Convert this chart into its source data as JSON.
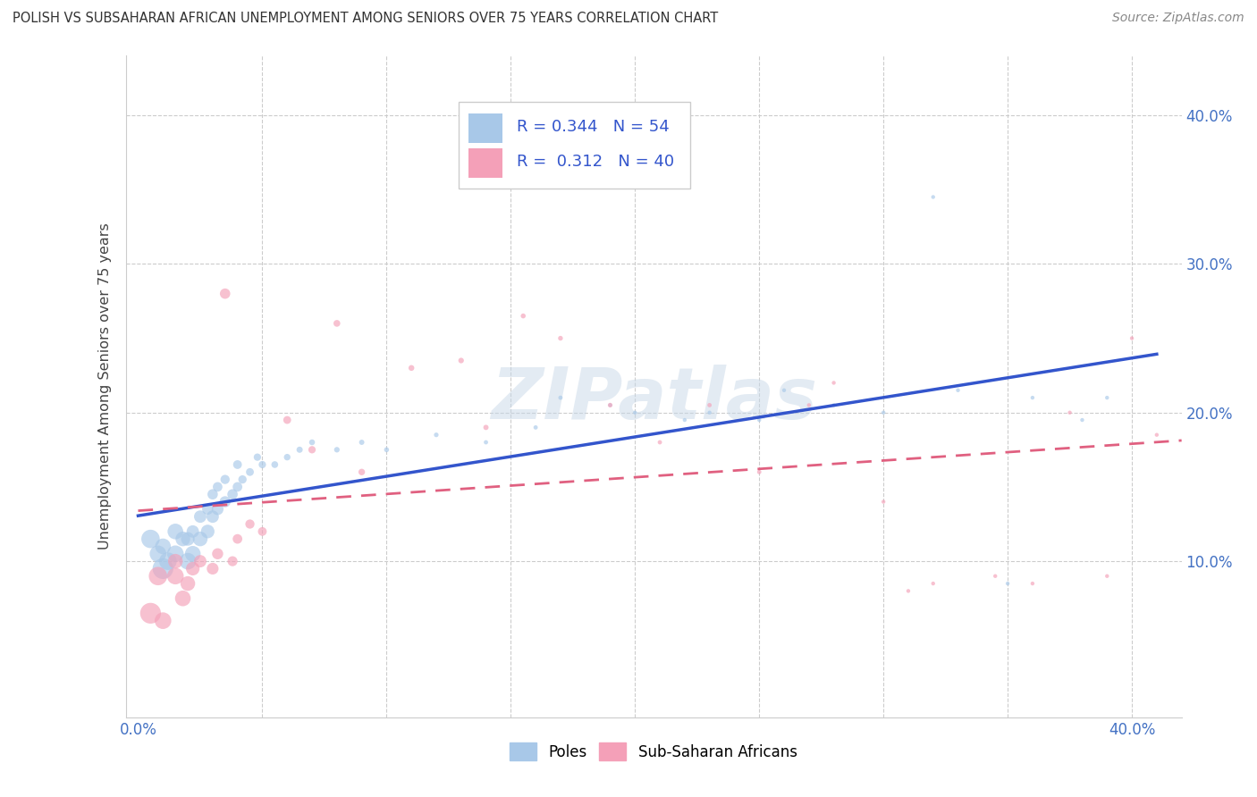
{
  "title": "POLISH VS SUBSAHARAN AFRICAN UNEMPLOYMENT AMONG SENIORS OVER 75 YEARS CORRELATION CHART",
  "source": "Source: ZipAtlas.com",
  "ylabel": "Unemployment Among Seniors over 75 years",
  "xlim": [
    -0.005,
    0.42
  ],
  "ylim": [
    -0.005,
    0.44
  ],
  "poles_color": "#a8c8e8",
  "african_color": "#f4a0b8",
  "poles_line_color": "#3355cc",
  "african_line_color": "#e06080",
  "african_line_dash": [
    6,
    4
  ],
  "R_poles": 0.344,
  "N_poles": 54,
  "R_african": 0.312,
  "N_african": 40,
  "background_color": "#ffffff",
  "grid_color": "#cccccc",
  "watermark": "ZIPatlas",
  "poles_x": [
    0.005,
    0.008,
    0.01,
    0.01,
    0.012,
    0.015,
    0.015,
    0.018,
    0.02,
    0.02,
    0.022,
    0.022,
    0.025,
    0.025,
    0.028,
    0.028,
    0.03,
    0.03,
    0.032,
    0.032,
    0.035,
    0.035,
    0.038,
    0.04,
    0.04,
    0.042,
    0.045,
    0.048,
    0.05,
    0.055,
    0.06,
    0.065,
    0.07,
    0.08,
    0.09,
    0.1,
    0.12,
    0.14,
    0.16,
    0.17,
    0.19,
    0.2,
    0.22,
    0.23,
    0.25,
    0.26,
    0.28,
    0.3,
    0.32,
    0.33,
    0.35,
    0.36,
    0.38,
    0.39
  ],
  "poles_y": [
    0.115,
    0.105,
    0.095,
    0.11,
    0.1,
    0.12,
    0.105,
    0.115,
    0.1,
    0.115,
    0.105,
    0.12,
    0.115,
    0.13,
    0.12,
    0.135,
    0.13,
    0.145,
    0.135,
    0.15,
    0.14,
    0.155,
    0.145,
    0.15,
    0.165,
    0.155,
    0.16,
    0.17,
    0.165,
    0.165,
    0.17,
    0.175,
    0.18,
    0.175,
    0.18,
    0.175,
    0.185,
    0.18,
    0.19,
    0.21,
    0.205,
    0.2,
    0.195,
    0.2,
    0.195,
    0.215,
    0.205,
    0.2,
    0.345,
    0.215,
    0.085,
    0.21,
    0.195,
    0.21
  ],
  "poles_size": [
    220,
    180,
    280,
    160,
    200,
    160,
    180,
    140,
    180,
    120,
    160,
    100,
    140,
    100,
    120,
    80,
    100,
    70,
    90,
    60,
    80,
    55,
    70,
    60,
    50,
    45,
    40,
    35,
    35,
    30,
    28,
    25,
    22,
    20,
    18,
    16,
    14,
    12,
    12,
    12,
    10,
    10,
    10,
    10,
    10,
    10,
    10,
    10,
    10,
    10,
    10,
    10,
    10,
    10
  ],
  "african_x": [
    0.005,
    0.008,
    0.01,
    0.015,
    0.015,
    0.018,
    0.02,
    0.022,
    0.025,
    0.03,
    0.032,
    0.035,
    0.038,
    0.04,
    0.045,
    0.05,
    0.06,
    0.07,
    0.08,
    0.09,
    0.11,
    0.13,
    0.14,
    0.155,
    0.17,
    0.19,
    0.21,
    0.23,
    0.25,
    0.27,
    0.28,
    0.3,
    0.31,
    0.32,
    0.345,
    0.36,
    0.375,
    0.39,
    0.4,
    0.41
  ],
  "african_y": [
    0.065,
    0.09,
    0.06,
    0.09,
    0.1,
    0.075,
    0.085,
    0.095,
    0.1,
    0.095,
    0.105,
    0.28,
    0.1,
    0.115,
    0.125,
    0.12,
    0.195,
    0.175,
    0.26,
    0.16,
    0.23,
    0.235,
    0.19,
    0.265,
    0.25,
    0.205,
    0.18,
    0.205,
    0.16,
    0.205,
    0.22,
    0.14,
    0.08,
    0.085,
    0.09,
    0.085,
    0.2,
    0.09,
    0.25,
    0.185
  ],
  "african_size": [
    280,
    220,
    180,
    180,
    140,
    160,
    140,
    120,
    100,
    90,
    80,
    70,
    65,
    60,
    55,
    50,
    40,
    35,
    30,
    28,
    22,
    20,
    18,
    16,
    15,
    14,
    12,
    12,
    12,
    10,
    10,
    10,
    10,
    10,
    10,
    10,
    10,
    10,
    10,
    10
  ]
}
